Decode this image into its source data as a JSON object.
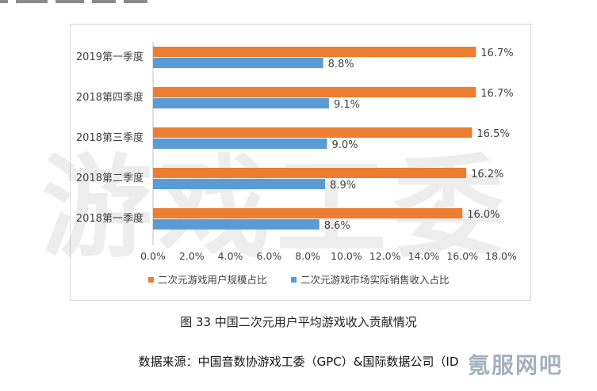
{
  "chart_data": {
    "type": "bar",
    "orientation": "horizontal",
    "categories": [
      "2019第一季度",
      "2018第四季度",
      "2018第三季度",
      "2018第二季度",
      "2018第一季度"
    ],
    "series": [
      {
        "name": "二次元游戏用户规模占比",
        "color": "#ED7D31",
        "values": [
          16.7,
          16.7,
          16.5,
          16.2,
          16.0
        ],
        "labels": [
          "16.7%",
          "16.7%",
          "16.5%",
          "16.2%",
          "16.0%"
        ]
      },
      {
        "name": "二次元游戏市场实际销售收入占比",
        "color": "#5B9BD5",
        "values": [
          8.8,
          9.1,
          9.0,
          8.9,
          8.6
        ],
        "labels": [
          "8.8%",
          "9.1%",
          "9.0%",
          "8.9%",
          "8.6%"
        ]
      }
    ],
    "xlim": [
      0,
      18
    ],
    "xticks": [
      "0.0%",
      "2.0%",
      "4.0%",
      "6.0%",
      "8.0%",
      "10.0%",
      "12.0%",
      "14.0%",
      "16.0%",
      "18.0%"
    ],
    "legend_position": "bottom",
    "grid": false
  },
  "watermark": "游戏工委",
  "caption": "图 33  中国二次元用户平均游戏收入贡献情况",
  "source": "数据来源：中国音数协游戏工委（GPC）&国际数据公司（ID",
  "corner_logo": "氪服网吧"
}
